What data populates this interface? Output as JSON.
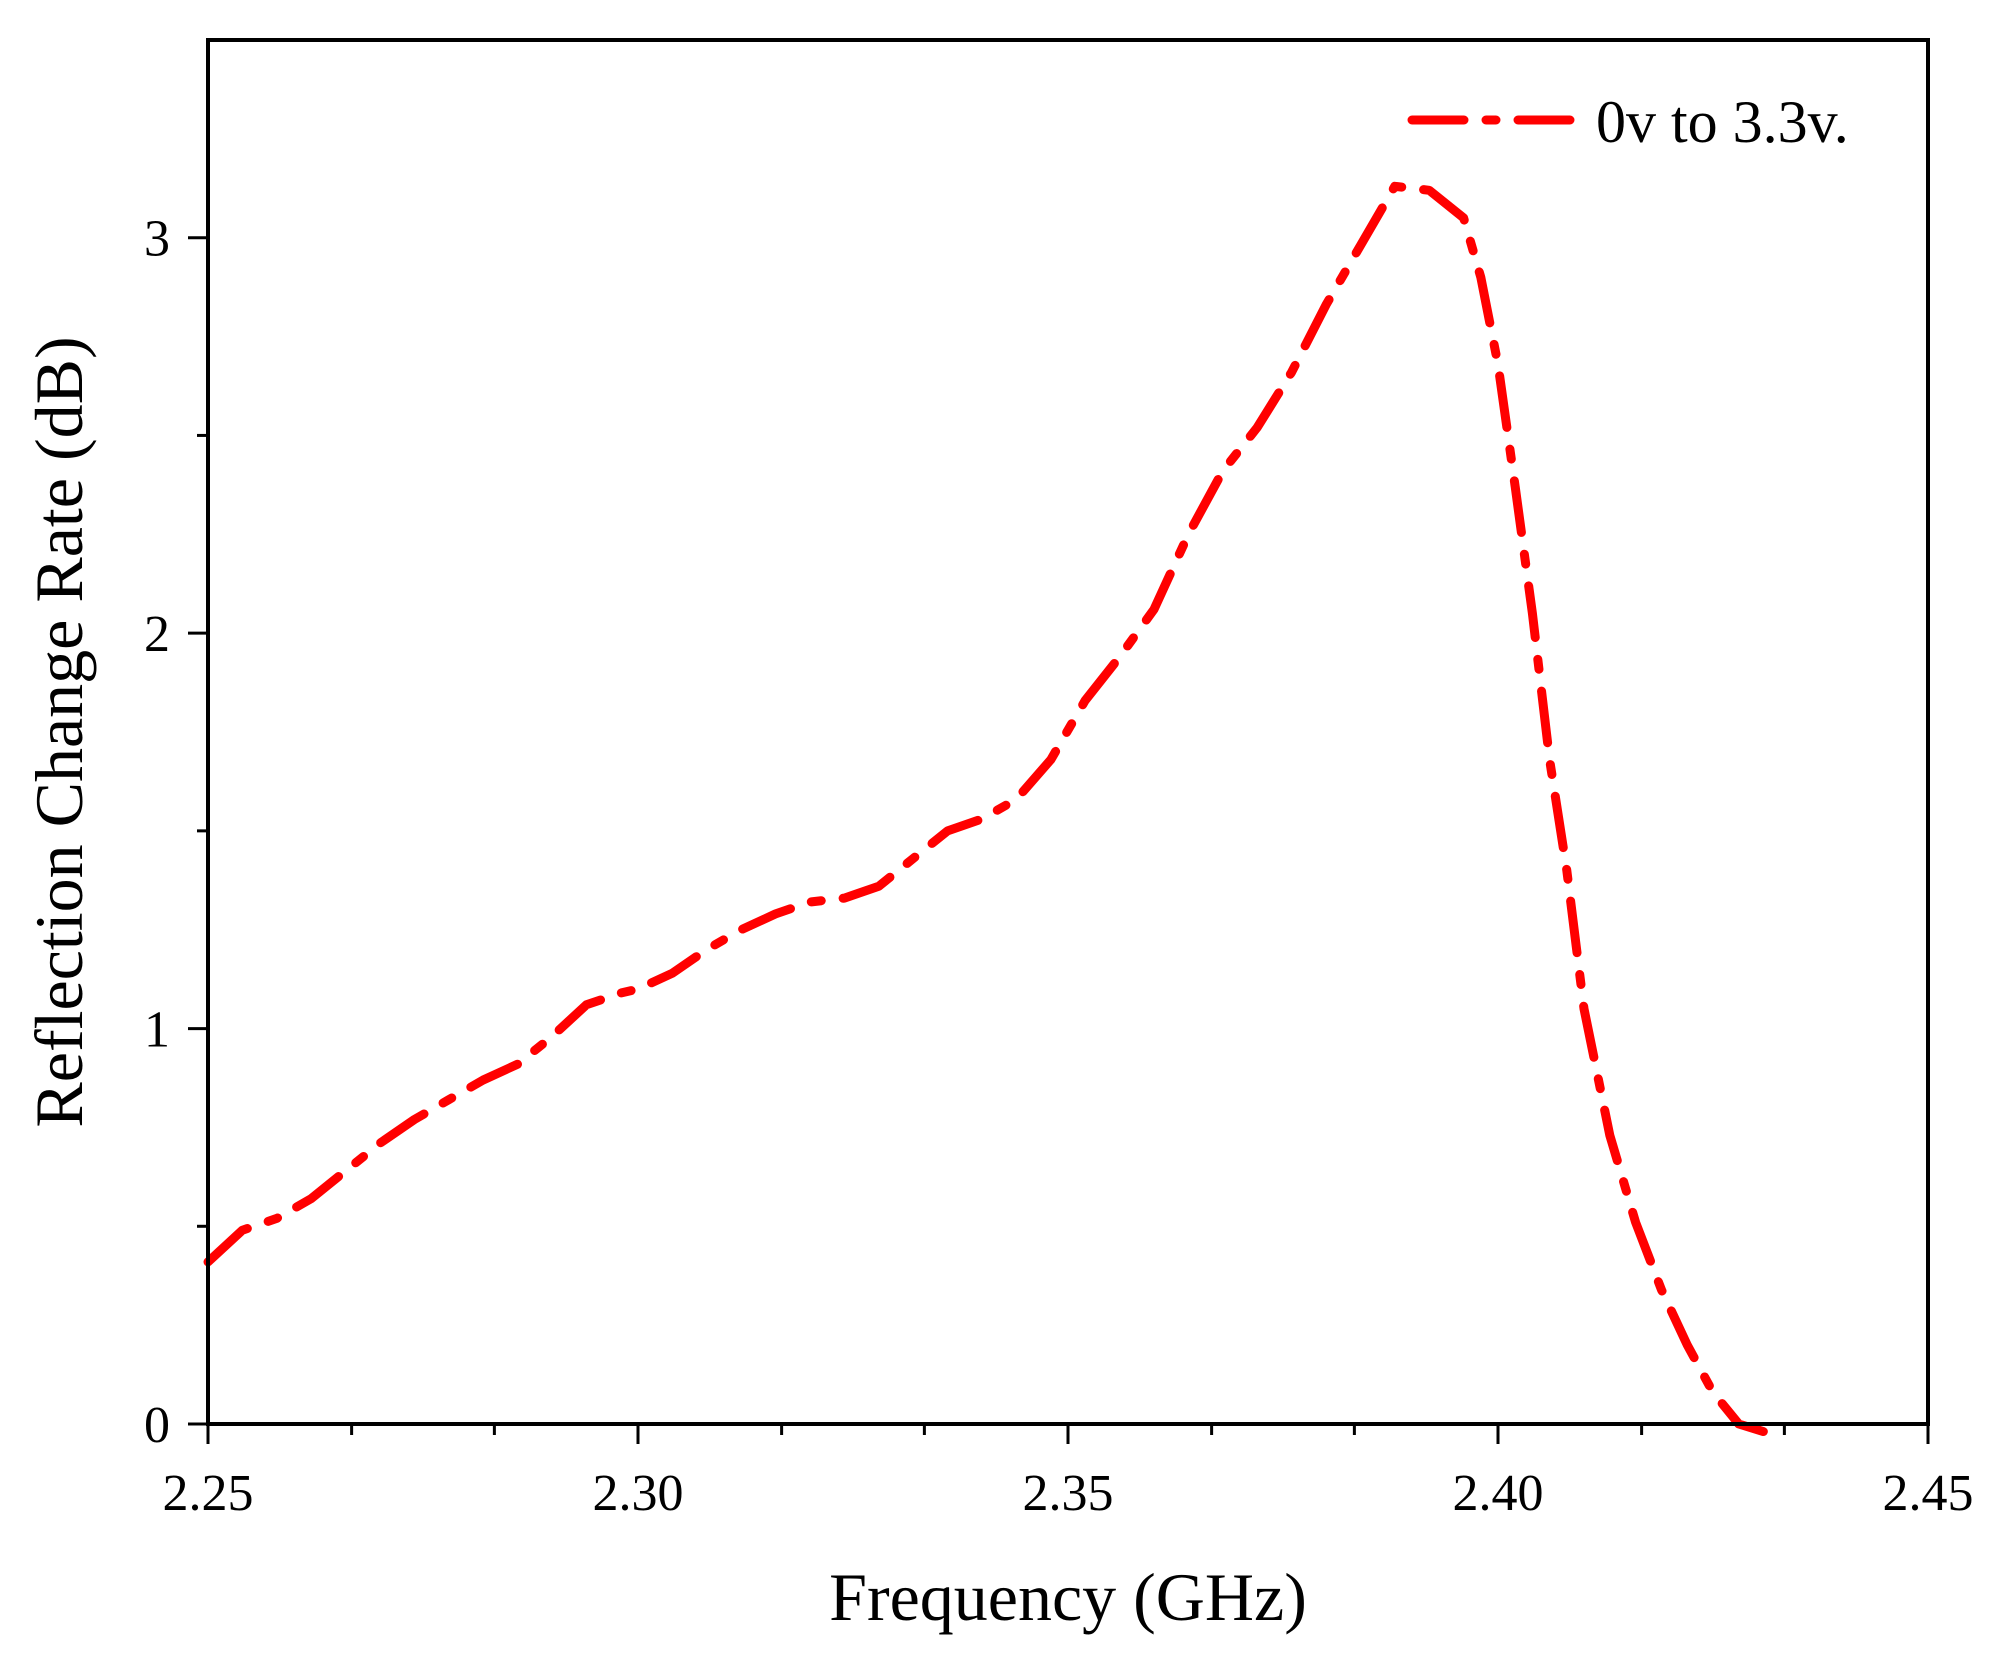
{
  "chart_data": {
    "type": "line",
    "title": "",
    "xlabel": "Frequency (GHz)",
    "ylabel": "Reflection Change Rate (dB)",
    "xlim": [
      2.25,
      2.45
    ],
    "ylim": [
      0,
      3.5
    ],
    "x_major_ticks": [
      2.25,
      2.3,
      2.35,
      2.4,
      2.45
    ],
    "x_tick_labels": [
      "2.25",
      "2.30",
      "2.35",
      "2.40",
      "2.45"
    ],
    "x_minor_ticks": [
      2.2667,
      2.2833,
      2.3167,
      2.3333,
      2.3667,
      2.3833,
      2.4167,
      2.4333
    ],
    "y_major_ticks": [
      0,
      1,
      2,
      3
    ],
    "y_tick_labels": [
      "0",
      "1",
      "2",
      "3"
    ],
    "grid": false,
    "legend_position": "top-right",
    "series": [
      {
        "name": "0v to 3.3v.",
        "color": "#ff0000",
        "line_style": "dash-dot",
        "x": [
          2.25,
          2.254,
          2.258,
          2.262,
          2.266,
          2.27,
          2.274,
          2.278,
          2.282,
          2.286,
          2.29,
          2.294,
          2.298,
          2.3,
          2.304,
          2.308,
          2.312,
          2.316,
          2.32,
          2.324,
          2.328,
          2.332,
          2.336,
          2.34,
          2.344,
          2.348,
          2.352,
          2.356,
          2.36,
          2.364,
          2.368,
          2.372,
          2.376,
          2.38,
          2.384,
          2.388,
          2.392,
          2.396,
          2.398,
          2.4,
          2.402,
          2.404,
          2.406,
          2.408,
          2.41,
          2.413,
          2.416,
          2.419,
          2.422,
          2.425,
          2.428,
          2.431,
          2.433
        ],
        "y": [
          0.41,
          0.49,
          0.52,
          0.57,
          0.64,
          0.71,
          0.77,
          0.82,
          0.87,
          0.91,
          0.98,
          1.06,
          1.09,
          1.1,
          1.14,
          1.2,
          1.25,
          1.29,
          1.32,
          1.33,
          1.36,
          1.43,
          1.5,
          1.53,
          1.58,
          1.68,
          1.83,
          1.94,
          2.06,
          2.25,
          2.41,
          2.52,
          2.66,
          2.83,
          2.98,
          3.13,
          3.12,
          3.05,
          2.9,
          2.68,
          2.37,
          2.05,
          1.68,
          1.4,
          1.05,
          0.73,
          0.51,
          0.34,
          0.2,
          0.08,
          0.0,
          -0.02,
          -0.02
        ]
      }
    ]
  }
}
